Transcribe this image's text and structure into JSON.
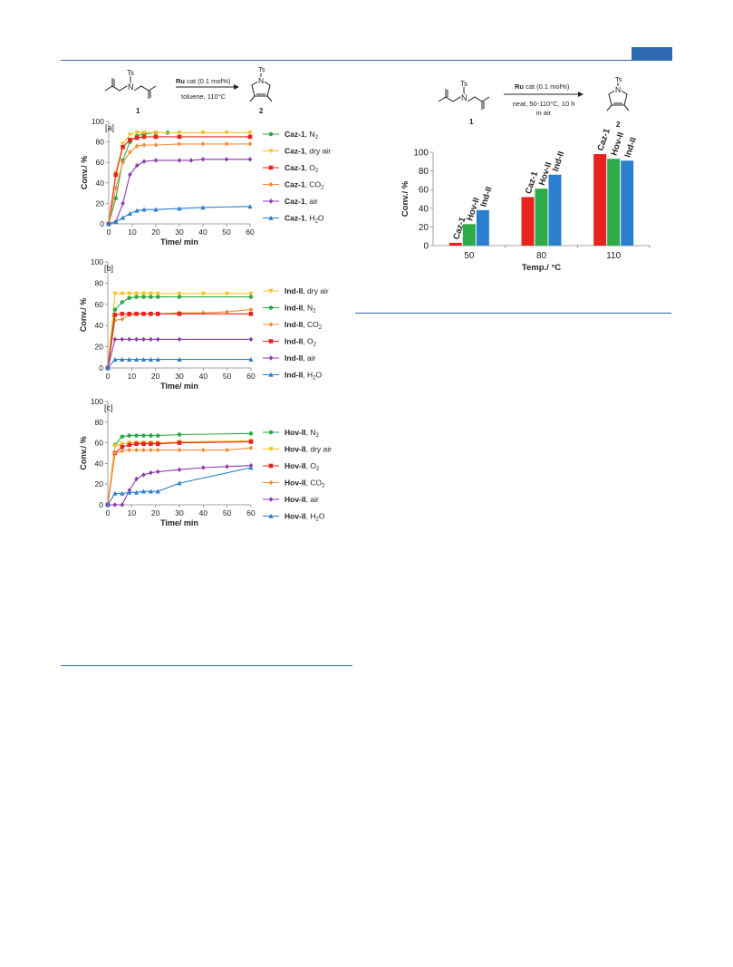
{
  "scheme_left": {
    "catalyst_bold": "Ru",
    "catalyst_rest": " cat (0.1 mol%)",
    "conditions": "toluene, 110°C",
    "substrate_number": "1",
    "product_number": "2",
    "ts_label": "Ts",
    "n_label": "N"
  },
  "scheme_right": {
    "catalyst_bold": "Ru",
    "catalyst_rest": " cat (0.1 mol%)",
    "conditions_line1": "neat, 50-110°C, 10 h",
    "conditions_line2": "in air",
    "substrate_number": "1",
    "product_number": "2",
    "ts_label": "Ts",
    "n_label": "N"
  },
  "chart_data": [
    {
      "type": "line",
      "panel_label": "[a]",
      "xlabel": "Time/ min",
      "ylabel": "Conv./ %",
      "xlim": [
        0,
        60
      ],
      "ylim": [
        0,
        100
      ],
      "xticks": [
        0,
        10,
        20,
        30,
        40,
        50,
        60
      ],
      "yticks": [
        0,
        20,
        40,
        60,
        80,
        100
      ],
      "series": [
        {
          "name_bold": "Caz-1",
          "name_rest": ", N",
          "sub": "2",
          "color": "#2daa4a",
          "marker": "circle",
          "x": [
            0,
            3,
            6,
            9,
            12,
            15,
            20,
            25
          ],
          "y": [
            0,
            25,
            62,
            80,
            86,
            88,
            89,
            89
          ]
        },
        {
          "name_bold": "Caz-1",
          "name_rest": ", dry air",
          "sub": "",
          "color": "#f6c122",
          "marker": "triangle-down",
          "x": [
            0,
            3,
            6,
            9,
            12,
            15,
            20,
            30,
            40,
            50,
            60
          ],
          "y": [
            0,
            50,
            78,
            87,
            89,
            89,
            89,
            89,
            89,
            89,
            89
          ]
        },
        {
          "name_bold": "Caz-1",
          "name_rest": ", O",
          "sub": "2",
          "color": "#e8221f",
          "marker": "square",
          "x": [
            0,
            3,
            6,
            9,
            12,
            15,
            20,
            30,
            60
          ],
          "y": [
            0,
            48,
            75,
            82,
            84,
            85,
            85,
            85,
            85
          ]
        },
        {
          "name_bold": "Caz-1",
          "name_rest": ", CO",
          "sub": "2",
          "color": "#f48b36",
          "marker": "diamond",
          "x": [
            0,
            3,
            6,
            9,
            12,
            15,
            20,
            30,
            40,
            50,
            60
          ],
          "y": [
            0,
            35,
            60,
            70,
            76,
            77,
            77,
            78,
            78,
            78,
            78
          ]
        },
        {
          "name_bold": "Caz-1",
          "name_rest": ", air",
          "sub": "",
          "color": "#8c3aab",
          "marker": "diamond",
          "x": [
            0,
            3,
            6,
            9,
            12,
            15,
            20,
            30,
            35,
            40,
            50,
            60
          ],
          "y": [
            0,
            2,
            20,
            48,
            57,
            61,
            62,
            62,
            62,
            63,
            63,
            63
          ]
        },
        {
          "name_bold": "Caz-1",
          "name_rest": ", H",
          "sub": "2O",
          "color": "#2a7fce",
          "marker": "triangle",
          "x": [
            0,
            3,
            6,
            9,
            12,
            15,
            20,
            30,
            40,
            60
          ],
          "y": [
            0,
            2,
            6,
            10,
            13,
            14,
            14,
            15,
            16,
            17
          ]
        }
      ]
    },
    {
      "type": "line",
      "panel_label": "[b]",
      "xlabel": "Time/ min",
      "ylabel": "Conv./ %",
      "xlim": [
        0,
        60
      ],
      "ylim": [
        0,
        100
      ],
      "xticks": [
        0,
        10,
        20,
        30,
        40,
        50,
        60
      ],
      "yticks": [
        0,
        20,
        40,
        60,
        80,
        100
      ],
      "series": [
        {
          "name_bold": "Ind-II",
          "name_rest": ", dry air",
          "sub": "",
          "color": "#f6c122",
          "marker": "triangle-down",
          "x": [
            0,
            3,
            6,
            9,
            12,
            15,
            18,
            21,
            30,
            40,
            50,
            60
          ],
          "y": [
            0,
            70,
            70,
            70,
            70,
            70,
            70,
            70,
            70,
            70,
            70,
            70
          ]
        },
        {
          "name_bold": "Ind-II",
          "name_rest": ", N",
          "sub": "2",
          "color": "#2daa4a",
          "marker": "circle",
          "x": [
            0,
            3,
            6,
            9,
            12,
            15,
            18,
            21,
            30,
            60
          ],
          "y": [
            0,
            55,
            62,
            66,
            67,
            67,
            67,
            67,
            67,
            67
          ]
        },
        {
          "name_bold": "Ind-II",
          "name_rest": ", CO",
          "sub": "2",
          "color": "#f48b36",
          "marker": "diamond",
          "x": [
            0,
            3,
            6,
            9,
            12,
            15,
            18,
            21,
            30,
            40,
            50,
            60
          ],
          "y": [
            0,
            45,
            46,
            50,
            51,
            51,
            51,
            51,
            52,
            52,
            53,
            55
          ]
        },
        {
          "name_bold": "Ind-II",
          "name_rest": ", O",
          "sub": "2",
          "color": "#e8221f",
          "marker": "square",
          "x": [
            0,
            3,
            6,
            9,
            12,
            15,
            18,
            21,
            30,
            60
          ],
          "y": [
            0,
            50,
            51,
            51,
            51,
            51,
            51,
            51,
            51,
            51
          ]
        },
        {
          "name_bold": "Ind-II",
          "name_rest": ", air",
          "sub": "",
          "color": "#8c3aab",
          "marker": "diamond",
          "x": [
            0,
            3,
            6,
            9,
            12,
            15,
            18,
            21,
            30,
            60
          ],
          "y": [
            0,
            27,
            27,
            27,
            27,
            27,
            27,
            27,
            27,
            27
          ]
        },
        {
          "name_bold": "Ind-II",
          "name_rest": ", H",
          "sub": "2O",
          "color": "#2a7fce",
          "marker": "triangle",
          "x": [
            0,
            3,
            6,
            9,
            12,
            15,
            18,
            21,
            30,
            60
          ],
          "y": [
            0,
            8,
            8,
            8,
            8,
            8,
            8,
            8,
            8,
            8
          ]
        }
      ]
    },
    {
      "type": "line",
      "panel_label": "[c]",
      "xlabel": "Time/ min",
      "ylabel": "Conv./ %",
      "xlim": [
        0,
        60
      ],
      "ylim": [
        0,
        100
      ],
      "xticks": [
        0,
        10,
        20,
        30,
        40,
        50,
        60
      ],
      "yticks": [
        0,
        20,
        40,
        60,
        80,
        100
      ],
      "series": [
        {
          "name_bold": "Hov-II",
          "name_rest": ", N",
          "sub": "2",
          "color": "#2daa4a",
          "marker": "circle",
          "x": [
            0,
            3,
            6,
            9,
            12,
            15,
            18,
            21,
            30,
            60
          ],
          "y": [
            0,
            58,
            66,
            67,
            67,
            67,
            67,
            67,
            68,
            69
          ]
        },
        {
          "name_bold": "Hov-II",
          "name_rest": ", dry air",
          "sub": "",
          "color": "#f6c122",
          "marker": "triangle-down",
          "x": [
            0,
            3,
            6,
            9,
            12,
            15,
            18,
            21,
            30,
            60
          ],
          "y": [
            0,
            57,
            59,
            60,
            60,
            60,
            60,
            60,
            61,
            62
          ]
        },
        {
          "name_bold": "Hov-II",
          "name_rest": ", O",
          "sub": "2",
          "color": "#e8221f",
          "marker": "square",
          "x": [
            0,
            3,
            6,
            9,
            12,
            15,
            18,
            21,
            30,
            60
          ],
          "y": [
            0,
            50,
            56,
            58,
            59,
            59,
            59,
            59,
            60,
            61
          ]
        },
        {
          "name_bold": "Hov-II",
          "name_rest": ", CO",
          "sub": "2",
          "color": "#f48b36",
          "marker": "diamond",
          "x": [
            0,
            3,
            6,
            9,
            12,
            15,
            18,
            21,
            30,
            40,
            50,
            60
          ],
          "y": [
            0,
            50,
            52,
            53,
            53,
            53,
            53,
            53,
            53,
            53,
            53,
            55
          ]
        },
        {
          "name_bold": "Hov-II",
          "name_rest": ", air",
          "sub": "",
          "color": "#8c3aab",
          "marker": "diamond",
          "x": [
            0,
            3,
            6,
            9,
            12,
            15,
            18,
            21,
            30,
            40,
            50,
            60
          ],
          "y": [
            0,
            0,
            0,
            14,
            25,
            29,
            31,
            32,
            34,
            36,
            37,
            38
          ]
        },
        {
          "name_bold": "Hov-II",
          "name_rest": ", H",
          "sub": "2O",
          "color": "#2a7fce",
          "marker": "triangle",
          "x": [
            0,
            3,
            6,
            9,
            12,
            15,
            18,
            21,
            30,
            60
          ],
          "y": [
            0,
            11,
            11,
            12,
            12,
            13,
            13,
            13,
            21,
            36
          ]
        }
      ]
    },
    {
      "type": "bar",
      "xlabel": "Temp./ °C",
      "ylabel": "Conv./ %",
      "ylim": [
        0,
        100
      ],
      "yticks": [
        0,
        20,
        40,
        60,
        80,
        100
      ],
      "categories": [
        "50",
        "80",
        "110"
      ],
      "series": [
        {
          "name": "Caz-1",
          "color": "#e8221f",
          "values": [
            3,
            52,
            98
          ]
        },
        {
          "name": "Hov-II",
          "color": "#2daa4a",
          "values": [
            23,
            61,
            93
          ]
        },
        {
          "name": "Ind-II",
          "color": "#2a7fce",
          "values": [
            38,
            76,
            91
          ]
        }
      ]
    }
  ]
}
